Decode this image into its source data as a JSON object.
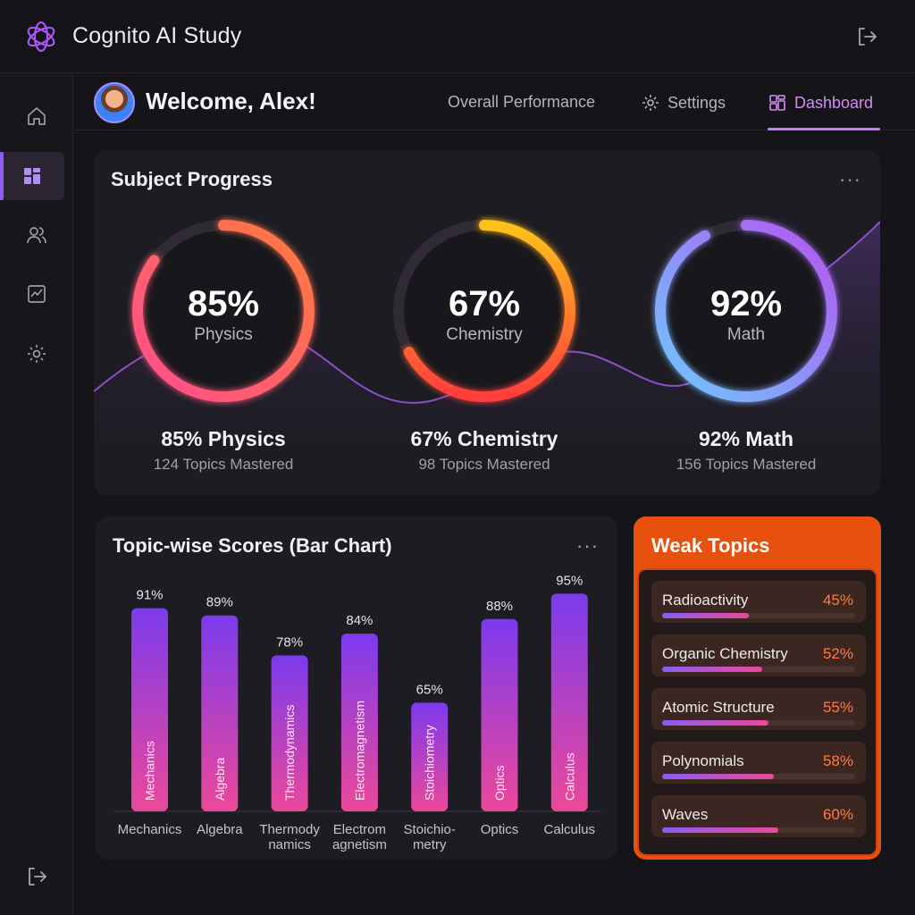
{
  "app": {
    "title": "Cognito AI Study"
  },
  "header": {
    "welcome": "Welcome, Alex!",
    "nav": [
      {
        "label": "Overall Performance"
      },
      {
        "label": "Settings"
      },
      {
        "label": "Dashboard"
      }
    ]
  },
  "progress": {
    "title": "Subject Progress",
    "more": "···",
    "subjects": [
      {
        "pct": "85%",
        "name": "Physics",
        "title": "85% Physics",
        "sub": "124 Topics Mastered",
        "value": 85
      },
      {
        "pct": "67%",
        "name": "Chemistry",
        "title": "67% Chemistry",
        "sub": "98 Topics Mastered",
        "value": 67
      },
      {
        "pct": "92%",
        "name": "Math",
        "title": "92% Math",
        "sub": "156 Topics Mastered",
        "value": 92
      }
    ]
  },
  "bars": {
    "title": "Topic-wise Scores (Bar Chart)",
    "more": "···"
  },
  "chart_data": {
    "type": "bar",
    "title": "Topic-wise Scores (Bar Chart)",
    "categories": [
      "Mechanics",
      "Algebra",
      "Thermodynamics",
      "Electromagnetism",
      "Stoichiometry",
      "Optics",
      "Calculus"
    ],
    "axis_labels": [
      [
        "Mechanics"
      ],
      [
        "Algebra"
      ],
      [
        "Thermody",
        "namics"
      ],
      [
        "Electrom",
        "agnetism"
      ],
      [
        "Stoichio-",
        "metry"
      ],
      [
        "Optics"
      ],
      [
        "Calculus"
      ]
    ],
    "values": [
      91,
      89,
      78,
      84,
      65,
      88,
      95
    ],
    "value_labels": [
      "91%",
      "89%",
      "78%",
      "84%",
      "65%",
      "88%",
      "95%"
    ],
    "ylim": [
      0,
      100
    ]
  },
  "weak": {
    "title": "Weak Topics",
    "items": [
      {
        "name": "Radioactivity",
        "val": "45%",
        "value": 45
      },
      {
        "name": "Organic Chemistry",
        "val": "52%",
        "value": 52
      },
      {
        "name": "Atomic Structure",
        "val": "55%",
        "value": 55
      },
      {
        "name": "Polynomials",
        "val": "58%",
        "value": 58
      },
      {
        "name": "Waves",
        "val": "60%",
        "value": 60
      }
    ]
  },
  "colors": {
    "accent": "#8b5cf6",
    "nav_active": "#d58cf2",
    "weak_bg": "#e8500e",
    "weak_value": "#ff7a45"
  }
}
